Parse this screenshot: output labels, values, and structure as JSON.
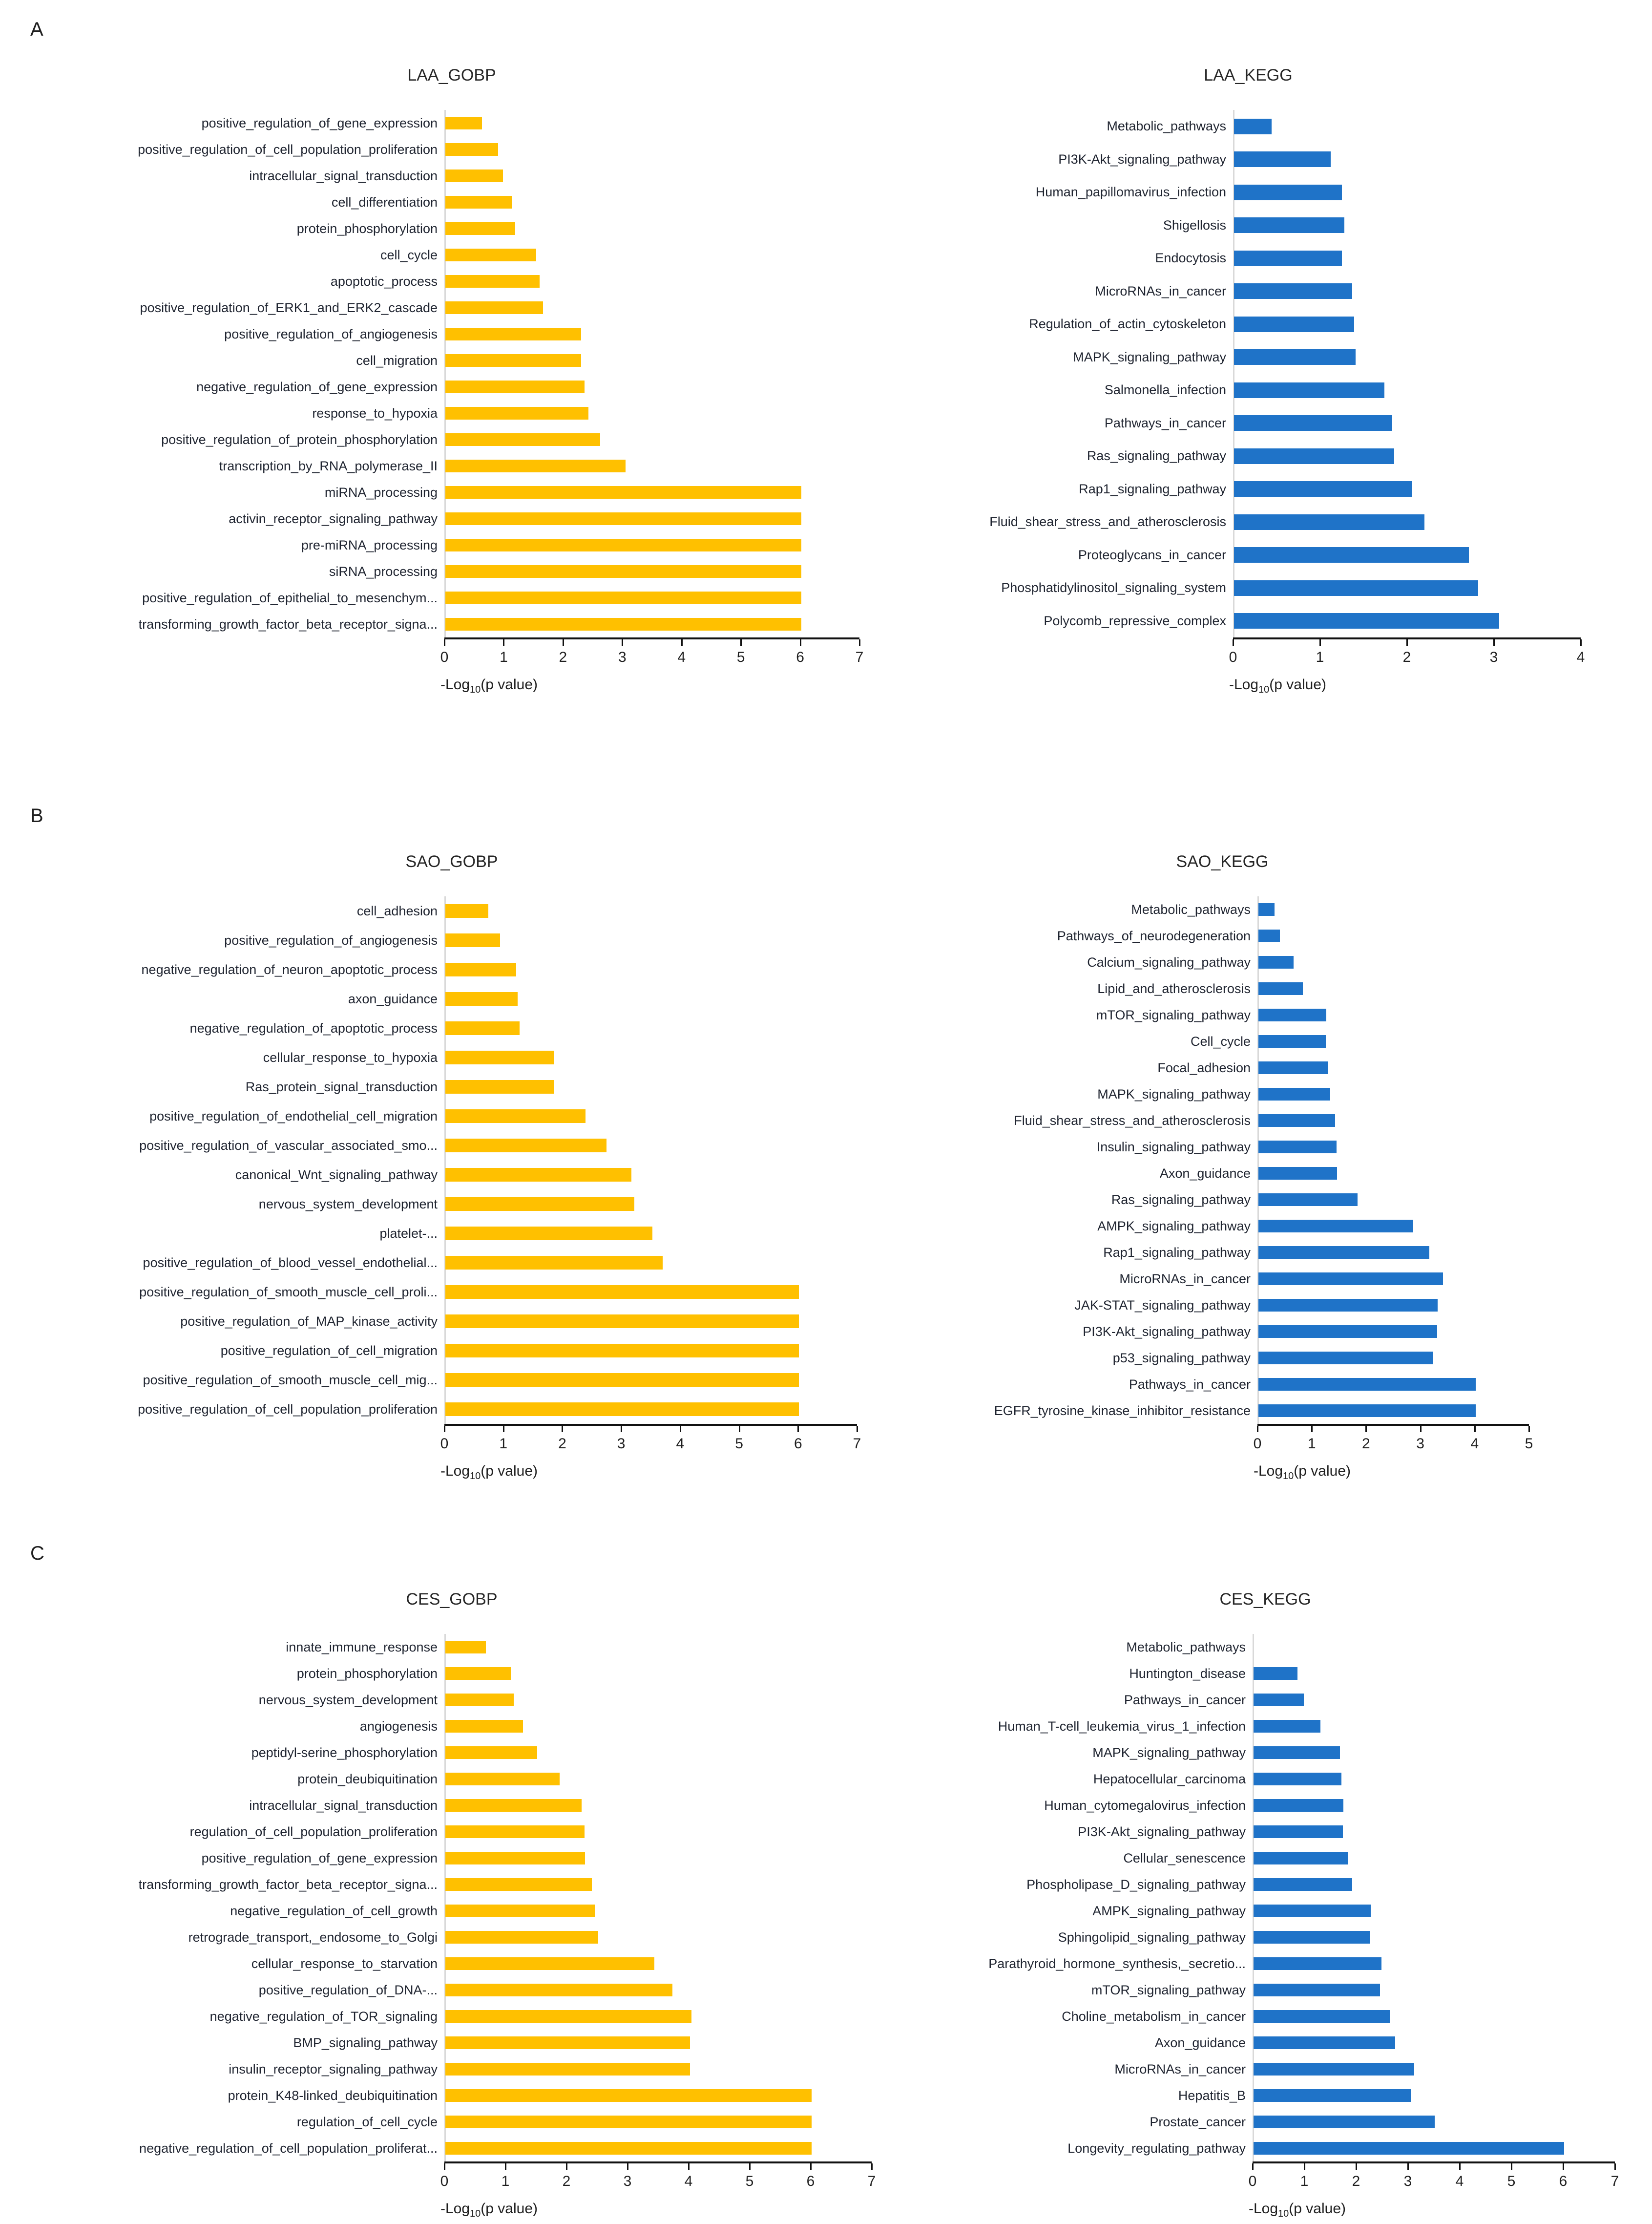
{
  "figure": {
    "panels": [
      {
        "letter": "A"
      },
      {
        "letter": "B"
      },
      {
        "letter": "C"
      }
    ],
    "xlabel": {
      "prefix": "-Log",
      "sub": "10",
      "suffix": "(p value)"
    },
    "colors": {
      "gobp_bar": "#FFC000",
      "kegg_bar": "#1F73C8"
    }
  },
  "chart_data": [
    {
      "id": "laa_gobp",
      "panel": "A",
      "type": "bar",
      "orientation": "horizontal",
      "title": "LAA_GOBP",
      "xlabel": "-Log10(p value)",
      "xlim": [
        0,
        7
      ],
      "xticks": [
        0,
        1,
        2,
        3,
        4,
        5,
        6,
        7
      ],
      "color": "#FFC000",
      "categories": [
        "positive_regulation_of_gene_expression",
        "positive_regulation_of_cell_population_proliferation",
        "intracellular_signal_transduction",
        "cell_differentiation",
        "protein_phosphorylation",
        "cell_cycle",
        "apoptotic_process",
        "positive_regulation_of_ERK1_and_ERK2_cascade",
        "positive_regulation_of_angiogenesis",
        "cell_migration",
        "negative_regulation_of_gene_expression",
        "response_to_hypoxia",
        "positive_regulation_of_protein_phosphorylation",
        "transcription_by_RNA_polymerase_II",
        "miRNA_processing",
        "activin_receptor_signaling_pathway",
        "pre-miRNA_processing",
        "siRNA_processing",
        "positive_regulation_of_epithelial_to_mesenchym...",
        "transforming_growth_factor_beta_receptor_signa..."
      ],
      "values": [
        0.62,
        0.89,
        0.97,
        1.13,
        1.18,
        1.53,
        1.59,
        1.65,
        2.29,
        2.29,
        2.35,
        2.41,
        2.61,
        3.04,
        6.0,
        6.0,
        6.0,
        6.0,
        6.0,
        6.0
      ]
    },
    {
      "id": "laa_kegg",
      "panel": "A",
      "type": "bar",
      "orientation": "horizontal",
      "title": "LAA_KEGG",
      "xlabel": "-Log10(p value)",
      "xlim": [
        0,
        4
      ],
      "xticks": [
        0,
        1,
        2,
        3,
        4
      ],
      "color": "#1F73C8",
      "categories": [
        "Metabolic_pathways",
        "PI3K-Akt_signaling_pathway",
        "Human_papillomavirus_infection",
        "Shigellosis",
        "Endocytosis",
        "MicroRNAs_in_cancer",
        "Regulation_of_actin_cytoskeleton",
        "MAPK_signaling_pathway",
        "Salmonella_infection",
        "Pathways_in_cancer",
        "Ras_signaling_pathway",
        "Rap1_signaling_pathway",
        "Fluid_shear_stress_and_atherosclerosis",
        "Proteoglycans_in_cancer",
        "Phosphatidylinositol_signaling_system",
        "Polycomb_repressive_complex"
      ],
      "values": [
        0.43,
        1.11,
        1.24,
        1.27,
        1.24,
        1.36,
        1.38,
        1.4,
        1.73,
        1.82,
        1.84,
        2.05,
        2.19,
        2.7,
        2.81,
        3.05
      ]
    },
    {
      "id": "sao_gobp",
      "panel": "B",
      "type": "bar",
      "orientation": "horizontal",
      "title": "SAO_GOBP",
      "xlabel": "-Log10(p value)",
      "xlim": [
        0,
        7
      ],
      "xticks": [
        0,
        1,
        2,
        3,
        4,
        5,
        6,
        7
      ],
      "color": "#FFC000",
      "categories": [
        "cell_adhesion",
        "positive_regulation_of_angiogenesis",
        "negative_regulation_of_neuron_apoptotic_process",
        "axon_guidance",
        "negative_regulation_of_apoptotic_process",
        "cellular_response_to_hypoxia",
        "Ras_protein_signal_transduction",
        "positive_regulation_of_endothelial_cell_migration",
        "positive_regulation_of_vascular_associated_smo...",
        "canonical_Wnt_signaling_pathway",
        "nervous_system_development",
        "platelet-...",
        "positive_regulation_of_blood_vessel_endothelial...",
        "positive_regulation_of_smooth_muscle_cell_proli...",
        "positive_regulation_of_MAP_kinase_activity",
        "positive_regulation_of_cell_migration",
        "positive_regulation_of_smooth_muscle_cell_mig...",
        "positive_regulation_of_cell_population_proliferation"
      ],
      "values": [
        0.73,
        0.93,
        1.2,
        1.23,
        1.26,
        1.85,
        1.85,
        2.38,
        2.73,
        3.16,
        3.21,
        3.51,
        3.69,
        6.0,
        6.0,
        6.0,
        6.0,
        6.0
      ]
    },
    {
      "id": "sao_kegg",
      "panel": "B",
      "type": "bar",
      "orientation": "horizontal",
      "title": "SAO_KEGG",
      "xlabel": "-Log10(p value)",
      "xlim": [
        0,
        5
      ],
      "xticks": [
        0,
        1,
        2,
        3,
        4,
        5
      ],
      "color": "#1F73C8",
      "categories": [
        "Metabolic_pathways",
        "Pathways_of_neurodegeneration",
        "Calcium_signaling_pathway",
        "Lipid_and_atherosclerosis",
        "mTOR_signaling_pathway",
        "Cell_cycle",
        "Focal_adhesion",
        "MAPK_signaling_pathway",
        "Fluid_shear_stress_and_atherosclerosis",
        "Insulin_signaling_pathway",
        "Axon_guidance",
        "Ras_signaling_pathway",
        "AMPK_signaling_pathway",
        "Rap1_signaling_pathway",
        "MicroRNAs_in_cancer",
        "JAK-STAT_signaling_pathway",
        "PI3K-Akt_signaling_pathway",
        "p53_signaling_pathway",
        "Pathways_in_cancer",
        "EGFR_tyrosine_kinase_inhibitor_resistance"
      ],
      "values": [
        0.3,
        0.4,
        0.65,
        0.82,
        1.25,
        1.24,
        1.29,
        1.32,
        1.41,
        1.44,
        1.45,
        1.83,
        2.85,
        3.15,
        3.4,
        3.3,
        3.29,
        3.22,
        4.0,
        4.0
      ]
    },
    {
      "id": "ces_gobp",
      "panel": "C",
      "type": "bar",
      "orientation": "horizontal",
      "title": "CES_GOBP",
      "xlabel": "-Log10(p value)",
      "xlim": [
        0,
        7
      ],
      "xticks": [
        0,
        1,
        2,
        3,
        4,
        5,
        6,
        7
      ],
      "color": "#FFC000",
      "categories": [
        "innate_immune_response",
        "protein_phosphorylation",
        "nervous_system_development",
        "angiogenesis",
        "peptidyl-serine_phosphorylation",
        "protein_deubiquitination",
        "intracellular_signal_transduction",
        "regulation_of_cell_population_proliferation",
        "positive_regulation_of_gene_expression",
        "transforming_growth_factor_beta_receptor_signa...",
        "negative_regulation_of_cell_growth",
        "retrograde_transport,_endosome_to_Golgi",
        "cellular_response_to_starvation",
        "positive_regulation_of_DNA-...",
        "negative_regulation_of_TOR_signaling",
        "BMP_signaling_pathway",
        "insulin_receptor_signaling_pathway",
        "protein_K48-linked_deubiquitination",
        "regulation_of_cell_cycle",
        "negative_regulation_of_cell_population_proliferat..."
      ],
      "values": [
        0.66,
        1.07,
        1.12,
        1.27,
        1.5,
        1.87,
        2.23,
        2.28,
        2.29,
        2.4,
        2.45,
        2.5,
        3.42,
        3.72,
        4.03,
        4.01,
        4.01,
        6.0,
        6.0,
        6.0
      ]
    },
    {
      "id": "ces_kegg",
      "panel": "C",
      "type": "bar",
      "orientation": "horizontal",
      "title": "CES_KEGG",
      "xlabel": "-Log10(p value)",
      "xlim": [
        0,
        7
      ],
      "xticks": [
        0,
        1,
        2,
        3,
        4,
        5,
        6,
        7
      ],
      "color": "#1F73C8",
      "categories": [
        "Metabolic_pathways",
        "Huntington_disease",
        "Pathways_in_cancer",
        "Human_T-cell_leukemia_virus_1_infection",
        "MAPK_signaling_pathway",
        "Hepatocellular_carcinoma",
        "Human_cytomegalovirus_infection",
        "PI3K-Akt_signaling_pathway",
        "Cellular_senescence",
        "Phospholipase_D_signaling_pathway",
        "AMPK_signaling_pathway",
        "Sphingolipid_signaling_pathway",
        "Parathyroid_hormone_synthesis,_secretio...",
        "mTOR_signaling_pathway",
        "Choline_metabolism_in_cancer",
        "Axon_guidance",
        "MicroRNAs_in_cancer",
        "Hepatitis_B",
        "Prostate_cancer",
        "Longevity_regulating_pathway"
      ],
      "values": [
        0.0,
        0.85,
        0.97,
        1.29,
        1.67,
        1.7,
        1.74,
        1.73,
        1.82,
        1.91,
        2.26,
        2.25,
        2.47,
        2.44,
        2.63,
        2.74,
        3.1,
        3.04,
        3.5,
        6.0
      ]
    }
  ]
}
